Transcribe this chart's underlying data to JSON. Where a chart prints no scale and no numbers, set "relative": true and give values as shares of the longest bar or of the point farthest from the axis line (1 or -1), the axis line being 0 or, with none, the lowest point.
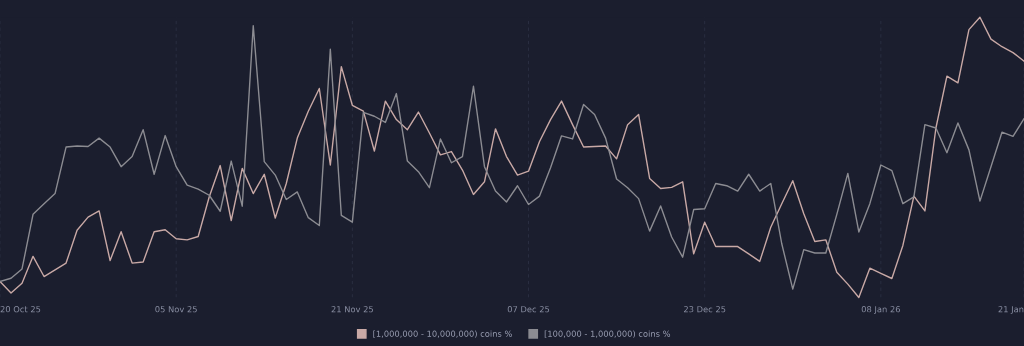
{
  "chart_data": {
    "type": "line",
    "relative": true,
    "tick_labels": "x",
    "grid": "x",
    "legend": "bottom",
    "marker": "none",
    "line_style": "solid",
    "x": [
      "2025-10-20",
      "2025-10-21",
      "2025-10-22",
      "2025-10-23",
      "2025-10-24",
      "2025-10-25",
      "2025-10-26",
      "2025-10-27",
      "2025-10-28",
      "2025-10-29",
      "2025-10-30",
      "2025-10-31",
      "2025-11-01",
      "2025-11-02",
      "2025-11-03",
      "2025-11-04",
      "2025-11-05",
      "2025-11-06",
      "2025-11-07",
      "2025-11-08",
      "2025-11-09",
      "2025-11-10",
      "2025-11-11",
      "2025-11-12",
      "2025-11-13",
      "2025-11-14",
      "2025-11-15",
      "2025-11-16",
      "2025-11-17",
      "2025-11-18",
      "2025-11-19",
      "2025-11-20",
      "2025-11-21",
      "2025-11-22",
      "2025-11-23",
      "2025-11-24",
      "2025-11-25",
      "2025-11-26",
      "2025-11-27",
      "2025-11-28",
      "2025-11-29",
      "2025-11-30",
      "2025-12-01",
      "2025-12-02",
      "2025-12-03",
      "2025-12-04",
      "2025-12-05",
      "2025-12-06",
      "2025-12-07",
      "2025-12-08",
      "2025-12-09",
      "2025-12-10",
      "2025-12-11",
      "2025-12-12",
      "2025-12-13",
      "2025-12-14",
      "2025-12-15",
      "2025-12-16",
      "2025-12-17",
      "2025-12-18",
      "2025-12-19",
      "2025-12-20",
      "2025-12-21",
      "2025-12-22",
      "2025-12-23",
      "2025-12-24",
      "2025-12-25",
      "2025-12-26",
      "2025-12-27",
      "2025-12-28",
      "2025-12-29",
      "2025-12-30",
      "2025-12-31",
      "2026-01-01",
      "2026-01-02",
      "2026-01-03",
      "2026-01-04",
      "2026-01-05",
      "2026-01-06",
      "2026-01-07",
      "2026-01-08",
      "2026-01-09",
      "2026-01-10",
      "2026-01-11",
      "2026-01-12",
      "2026-01-13",
      "2026-01-14",
      "2026-01-15",
      "2026-01-16",
      "2026-01-17",
      "2026-01-18",
      "2026-01-19",
      "2026-01-20",
      "2026-01-21"
    ],
    "xlim": [
      "2025-10-20",
      "2026-01-21"
    ],
    "xticks": [
      {
        "value": "2025-10-20",
        "label": "20 Oct 25"
      },
      {
        "value": "2025-11-05",
        "label": "05 Nov 25"
      },
      {
        "value": "2025-11-21",
        "label": "21 Nov 25"
      },
      {
        "value": "2025-12-07",
        "label": "07 Dec 25"
      },
      {
        "value": "2025-12-23",
        "label": "23 Dec 25"
      },
      {
        "value": "2026-01-08",
        "label": "08 Jan 26"
      },
      {
        "value": "2026-01-21",
        "label": "21 Jan"
      }
    ],
    "series": [
      {
        "name": "[1,000,000 - 10,000,000) coins %",
        "color": "#c9a9a6",
        "values": [
          0.057,
          0.016,
          0.051,
          0.147,
          0.075,
          0.099,
          0.123,
          0.24,
          0.287,
          0.309,
          0.132,
          0.235,
          0.123,
          0.127,
          0.235,
          0.242,
          0.21,
          0.206,
          0.218,
          0.359,
          0.471,
          0.275,
          0.461,
          0.371,
          0.44,
          0.284,
          0.407,
          0.569,
          0.665,
          0.746,
          0.473,
          0.824,
          0.686,
          0.665,
          0.523,
          0.701,
          0.635,
          0.599,
          0.662,
          0.587,
          0.509,
          0.521,
          0.455,
          0.368,
          0.413,
          0.602,
          0.503,
          0.437,
          0.451,
          0.557,
          0.635,
          0.701,
          0.617,
          0.537,
          0.539,
          0.541,
          0.495,
          0.617,
          0.653,
          0.425,
          0.389,
          0.393,
          0.413,
          0.156,
          0.269,
          0.182,
          0.182,
          0.182,
          0.156,
          0.129,
          0.251,
          0.335,
          0.417,
          0.299,
          0.2,
          0.206,
          0.09,
          0.048,
          0,
          0.105,
          0.086,
          0.068,
          0.186,
          0.362,
          0.309,
          0.605,
          0.79,
          0.766,
          0.956,
          1,
          0.922,
          0.895,
          0.874,
          0.844
        ]
      },
      {
        "name": "[100,000 - 1,000,000) coins %",
        "color": "#8c8c92",
        "values": [
          0.057,
          0.069,
          0.102,
          0.297,
          0.335,
          0.371,
          0.537,
          0.541,
          0.539,
          0.569,
          0.537,
          0.467,
          0.503,
          0.599,
          0.44,
          0.578,
          0.467,
          0.401,
          0.387,
          0.365,
          0.308,
          0.487,
          0.326,
          0.97,
          0.485,
          0.437,
          0.35,
          0.377,
          0.285,
          0.257,
          0.886,
          0.293,
          0.269,
          0.661,
          0.647,
          0.625,
          0.728,
          0.487,
          0.449,
          0.392,
          0.566,
          0.481,
          0.503,
          0.754,
          0.467,
          0.38,
          0.341,
          0.399,
          0.332,
          0.362,
          0.463,
          0.577,
          0.566,
          0.689,
          0.653,
          0.569,
          0.423,
          0.392,
          0.353,
          0.237,
          0.327,
          0.216,
          0.144,
          0.314,
          0.317,
          0.407,
          0.399,
          0.38,
          0.44,
          0.38,
          0.407,
          0.192,
          0.03,
          0.171,
          0.159,
          0.159,
          0.297,
          0.443,
          0.234,
          0.335,
          0.473,
          0.453,
          0.335,
          0.359,
          0.617,
          0.605,
          0.517,
          0.623,
          0.527,
          0.344,
          0.467,
          0.59,
          0.575,
          0.638
        ]
      }
    ]
  }
}
